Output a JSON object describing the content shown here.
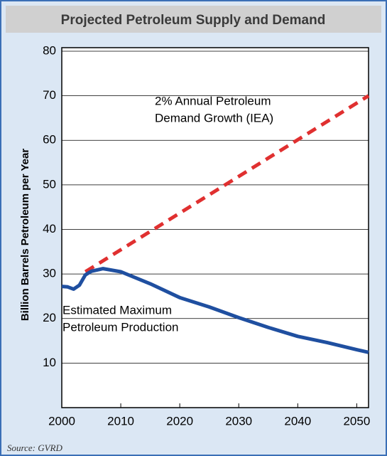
{
  "chart_data": {
    "type": "line",
    "title": "Projected Petroleum Supply and Demand",
    "ylabel": "Billion Barrels Petroleum per Year",
    "source": "Source: GVRD",
    "annotations": [
      [
        "2% Annual Petroleum",
        "Demand Growth (IEA)"
      ],
      [
        "Estimated Maximum",
        "Petroleum Production"
      ]
    ],
    "xlim": [
      2000,
      2052
    ],
    "xticks": [
      2000,
      2010,
      2020,
      2030,
      2040,
      2050
    ],
    "ylim": [
      0,
      80
    ],
    "yticks": [
      10,
      20,
      30,
      40,
      50,
      60,
      70,
      80
    ],
    "grid": true,
    "series": [
      {
        "name": "2% Annual Petroleum Demand Growth (IEA)",
        "color": "#e03030",
        "dashed": true,
        "x": [
          2004,
          2052
        ],
        "values": [
          30.5,
          70
        ]
      },
      {
        "name": "Estimated Maximum Petroleum Production",
        "color": "#1f4fa0",
        "dashed": false,
        "x": [
          2000,
          2001,
          2002,
          2003,
          2004,
          2005,
          2007,
          2010,
          2015,
          2020,
          2025,
          2030,
          2035,
          2040,
          2045,
          2050,
          2052
        ],
        "values": [
          27.2,
          27.1,
          26.6,
          27.5,
          29.8,
          30.6,
          31.2,
          30.5,
          27.8,
          24.7,
          22.6,
          20.2,
          18,
          16,
          14.6,
          13,
          12.4
        ]
      }
    ]
  }
}
